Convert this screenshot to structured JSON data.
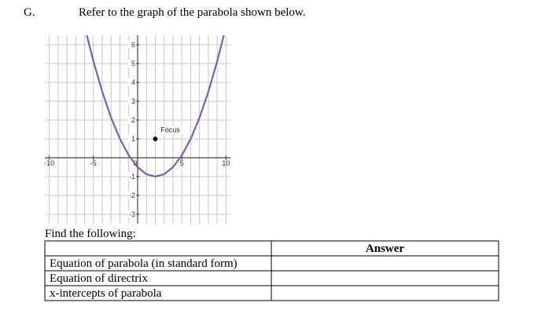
{
  "header": {
    "label": "G.",
    "text": "Refer to the graph of the parabola shown below."
  },
  "chart_data": {
    "type": "line",
    "x": [
      -5.75,
      -5,
      -4,
      -3,
      -2,
      -1,
      0,
      1,
      2,
      3,
      4,
      5,
      6,
      7,
      8,
      9,
      9.75
    ],
    "values": [
      6.5,
      5.125,
      3.5,
      2.125,
      1,
      0.125,
      -0.5,
      -0.875,
      -1,
      -0.875,
      -0.5,
      0.125,
      1,
      2.125,
      3.5,
      5.125,
      6.5
    ],
    "color": "#7b5eb0",
    "xlim": [
      -10.5,
      10.5
    ],
    "ylim": [
      -3.5,
      6.5
    ],
    "xticks": [
      -10,
      -5,
      0,
      5,
      10
    ],
    "yticks": [
      -3,
      -2,
      -1,
      1,
      2,
      3,
      4,
      5,
      6
    ],
    "xgrid": [
      -10,
      -9,
      -8,
      -7,
      -6,
      -5,
      -4,
      -3,
      -2,
      -1,
      0,
      1,
      2,
      3,
      4,
      5,
      6,
      7,
      8,
      9,
      10
    ],
    "ygrid": [
      -3,
      -2,
      -1,
      0,
      1,
      2,
      3,
      4,
      5,
      6
    ],
    "grid": true,
    "annotations": [
      {
        "x": 2,
        "y": 1,
        "text": "Focus"
      }
    ]
  },
  "prompt": "Find the following:",
  "table": {
    "columns": [
      "Answer"
    ],
    "rows": [
      "Equation of parabola (in standard form)",
      "Equation of directrix",
      "x-intercepts of parabola"
    ]
  }
}
